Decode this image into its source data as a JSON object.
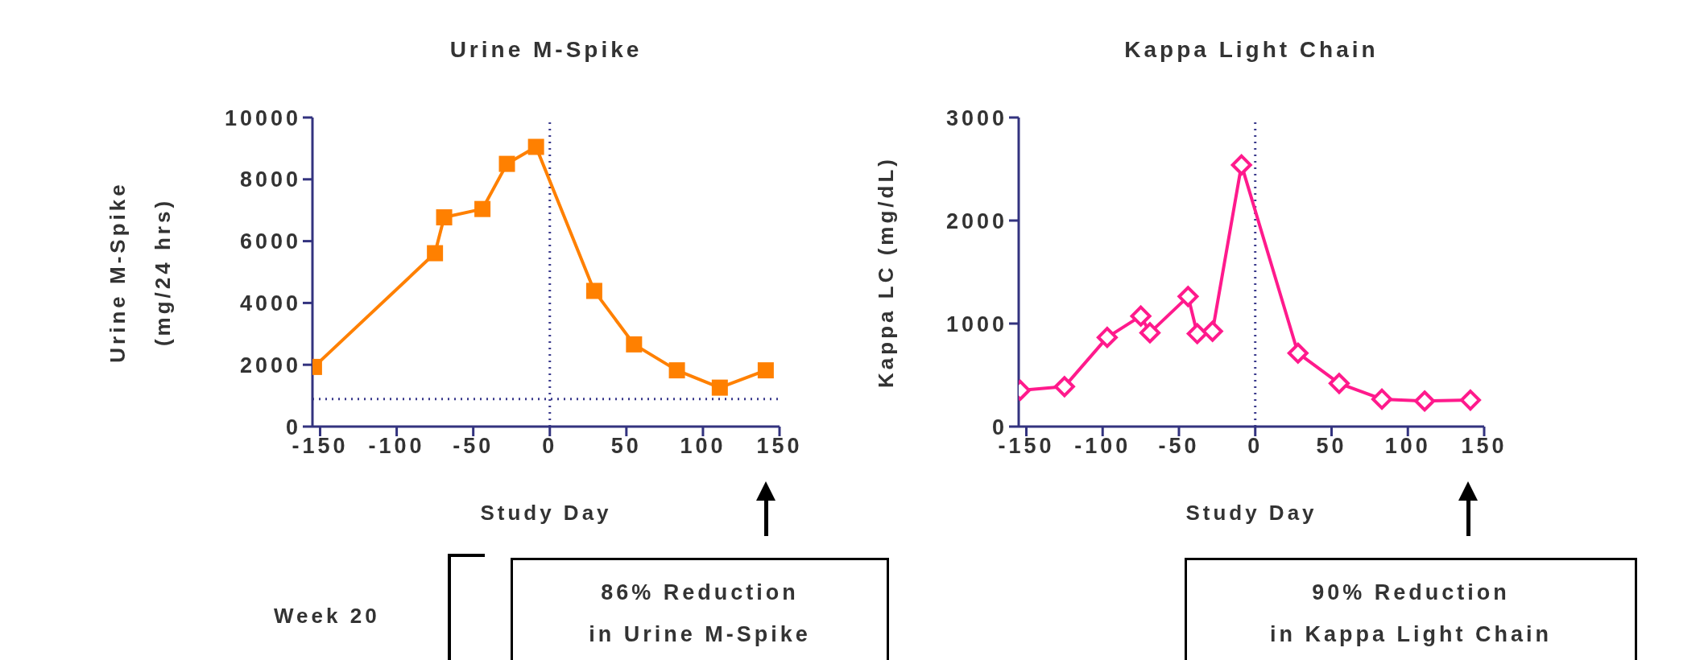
{
  "chart_data": [
    {
      "type": "line",
      "title": "Urine M-Spike",
      "xlabel": "Study Day",
      "ylabel": "Urine M-Spike\n(mg/24 hrs)",
      "x": [
        -154,
        -75,
        -69,
        -44,
        -28,
        -9,
        29,
        55,
        83,
        111,
        141
      ],
      "series": [
        {
          "color": "#ff8000",
          "values": [
            1930,
            5610,
            6770,
            7040,
            8500,
            9050,
            4390,
            2660,
            1820,
            1260,
            1820
          ]
        }
      ],
      "marker": "square",
      "xlim": [
        -155,
        150
      ],
      "xticks": [
        -150,
        -100,
        -50,
        0,
        50,
        100,
        150
      ],
      "ylim": [
        0,
        10000
      ],
      "yticks": [
        0,
        2000,
        4000,
        6000,
        8000,
        10000
      ],
      "ref_lines": [
        {
          "axis": "x",
          "value": 0,
          "color": "#3a3a8c",
          "line_style": "dotted"
        },
        {
          "axis": "y",
          "value": 890,
          "color": "#3a3a8c",
          "line_style": "dotted"
        }
      ],
      "annotations": [
        "Week 20",
        "86% Reduction\nin Urine M-Spike"
      ],
      "grid": false,
      "legend": false
    },
    {
      "type": "line",
      "title": "Kappa Light Chain",
      "xlabel": "Study Day",
      "ylabel": "Kappa LC (mg/dL)",
      "x": [
        -154,
        -125,
        -97,
        -75,
        -69,
        -44,
        -38,
        -28,
        -9,
        28,
        55,
        83,
        111,
        141
      ],
      "series": [
        {
          "color": "#ff1a8c",
          "values": [
            352,
            388,
            866,
            1073,
            911,
            1263,
            902,
            925,
            2540,
            713,
            419,
            266,
            248,
            257
          ]
        }
      ],
      "marker": "diamond",
      "xlim": [
        -155,
        150
      ],
      "xticks": [
        -150,
        -100,
        -50,
        0,
        50,
        100,
        150
      ],
      "ylim": [
        0,
        3000
      ],
      "yticks": [
        0,
        1000,
        2000,
        3000
      ],
      "ref_lines": [
        {
          "axis": "x",
          "value": 0,
          "color": "#3a3a8c",
          "line_style": "dotted"
        }
      ],
      "annotations": [
        "90% Reduction\nin Kappa Light Chain"
      ],
      "grid": false,
      "legend": false
    }
  ]
}
